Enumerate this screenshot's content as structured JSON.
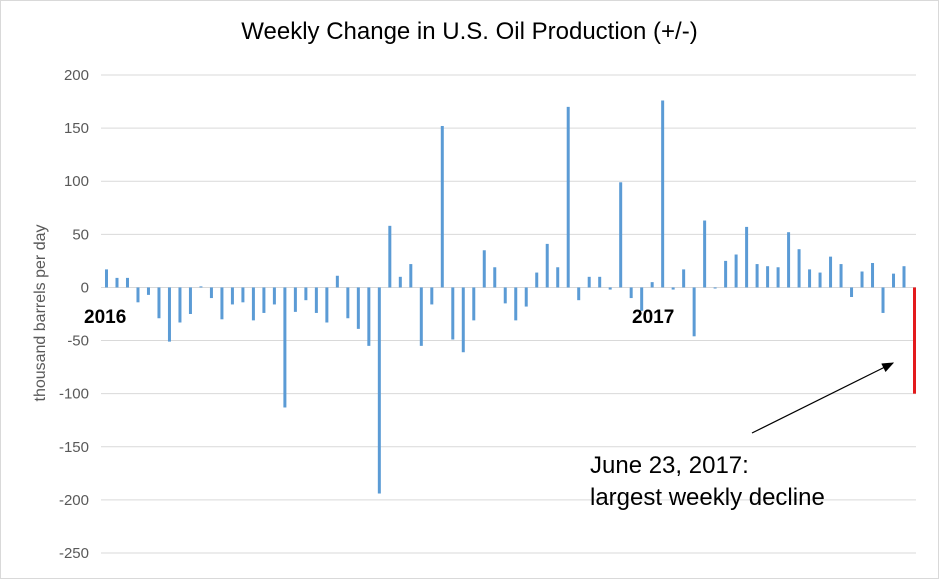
{
  "chart_data": {
    "type": "bar",
    "title": "Weekly Change in U.S. Oil Production (+/-)",
    "ylabel": "thousand barrels per day",
    "xlabel": "",
    "ylim": [
      -250,
      200
    ],
    "yticks": [
      200,
      150,
      100,
      50,
      0,
      -50,
      -100,
      -150,
      -200,
      -250
    ],
    "grid": true,
    "year_labels": [
      "2016",
      "2017"
    ],
    "bar_color": "#5b9bd5",
    "highlight_color": "#e31a1c",
    "series": [
      {
        "values": [
          17,
          9,
          9,
          -14,
          -7,
          -29,
          -51,
          -33,
          -25,
          1,
          -10,
          -30,
          -16,
          -14,
          -31,
          -24,
          -16,
          -113,
          -23,
          -12,
          -24,
          -33,
          11,
          -29,
          -39,
          -55,
          -194,
          58,
          10,
          22,
          -55,
          -16,
          152,
          -49,
          -61,
          -31,
          35,
          19,
          -15,
          -31,
          -18,
          14,
          41,
          19,
          170,
          -12,
          10,
          10,
          -2,
          99,
          -10,
          -22,
          5,
          176,
          -2,
          17,
          -46,
          63,
          -1,
          25,
          31,
          57,
          22,
          20,
          19,
          52,
          36,
          17,
          14,
          29,
          22,
          -9,
          15,
          23,
          -24,
          13,
          20,
          -100
        ]
      }
    ],
    "highlight": {
      "index": 77,
      "value": -100,
      "annotation_line1": "June 23, 2017:",
      "annotation_line2": "largest weekly decline"
    }
  }
}
